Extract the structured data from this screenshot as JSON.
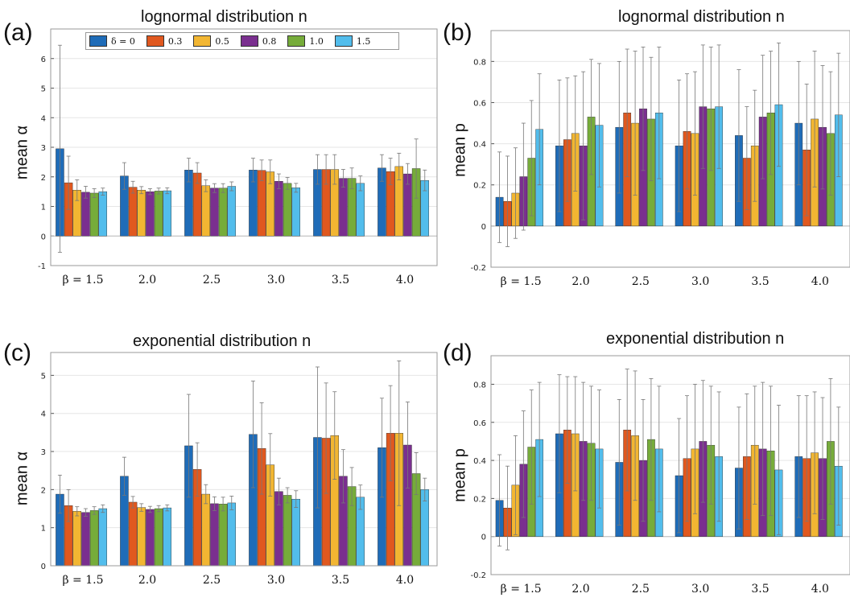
{
  "colors": [
    "#1f6cb8",
    "#e0581f",
    "#f2b632",
    "#7a2f8f",
    "#76ac3a",
    "#52bdec"
  ],
  "legend": {
    "entries": [
      "δ = 0",
      "0.3",
      "0.5",
      "0.8",
      "1.0",
      "1.5"
    ]
  },
  "chart_data": [
    {
      "panel_label": "(a)",
      "type": "bar",
      "title": "lognormal distribution n",
      "ylabel": "mean α",
      "categories": [
        "β = 1.5",
        "2.0",
        "2.5",
        "3.0",
        "3.5",
        "4.0"
      ],
      "yticks": [
        "-1",
        "0",
        "1",
        "2",
        "3",
        "4",
        "5",
        "6"
      ],
      "ylim": [
        -1,
        7
      ],
      "series": [
        {
          "name": "δ = 0",
          "values": [
            2.95,
            2.03,
            2.23,
            2.23,
            2.25,
            2.3
          ],
          "err": [
            3.5,
            0.45,
            0.4,
            0.4,
            0.5,
            0.45
          ]
        },
        {
          "name": "0.3",
          "values": [
            1.8,
            1.65,
            2.13,
            2.22,
            2.25,
            2.18
          ],
          "err": [
            0.9,
            0.2,
            0.35,
            0.35,
            0.5,
            0.45
          ]
        },
        {
          "name": "0.5",
          "values": [
            1.55,
            1.55,
            1.7,
            2.17,
            2.25,
            2.35
          ],
          "err": [
            0.35,
            0.12,
            0.2,
            0.4,
            0.5,
            0.45
          ]
        },
        {
          "name": "0.8",
          "values": [
            1.48,
            1.5,
            1.62,
            1.85,
            1.95,
            2.1
          ],
          "err": [
            0.2,
            0.1,
            0.15,
            0.25,
            0.3,
            0.35
          ]
        },
        {
          "name": "1.0",
          "values": [
            1.45,
            1.52,
            1.62,
            1.78,
            1.95,
            2.28
          ],
          "err": [
            0.15,
            0.1,
            0.15,
            0.2,
            0.35,
            1.0
          ]
        },
        {
          "name": "1.5",
          "values": [
            1.5,
            1.53,
            1.68,
            1.63,
            1.78,
            1.88
          ],
          "err": [
            0.12,
            0.1,
            0.15,
            0.15,
            0.25,
            0.35
          ]
        }
      ]
    },
    {
      "panel_label": "(b)",
      "type": "bar",
      "title": "lognormal distribution n",
      "ylabel": "mean p",
      "categories": [
        "β = 1.5",
        "2.0",
        "2.5",
        "3.0",
        "3.5",
        "4.0"
      ],
      "yticks": [
        "-0.2",
        "0",
        "0.2",
        "0.4",
        "0.6",
        "0.8"
      ],
      "ylim": [
        -0.2,
        0.95
      ],
      "series": [
        {
          "name": "δ = 0",
          "values": [
            0.14,
            0.39,
            0.48,
            0.39,
            0.44,
            0.5
          ],
          "err": [
            0.22,
            0.32,
            0.32,
            0.32,
            0.32,
            0.3
          ]
        },
        {
          "name": "0.3",
          "values": [
            0.12,
            0.42,
            0.55,
            0.46,
            0.33,
            0.37
          ],
          "err": [
            0.22,
            0.3,
            0.31,
            0.28,
            0.25,
            0.32
          ]
        },
        {
          "name": "0.5",
          "values": [
            0.16,
            0.45,
            0.5,
            0.45,
            0.39,
            0.52
          ],
          "err": [
            0.22,
            0.28,
            0.35,
            0.3,
            0.27,
            0.33
          ]
        },
        {
          "name": "0.8",
          "values": [
            0.24,
            0.39,
            0.57,
            0.58,
            0.53,
            0.48
          ],
          "err": [
            0.26,
            0.36,
            0.3,
            0.3,
            0.3,
            0.3
          ]
        },
        {
          "name": "1.0",
          "values": [
            0.33,
            0.53,
            0.52,
            0.57,
            0.55,
            0.45
          ],
          "err": [
            0.28,
            0.28,
            0.3,
            0.3,
            0.3,
            0.3
          ]
        },
        {
          "name": "1.5",
          "values": [
            0.47,
            0.49,
            0.55,
            0.58,
            0.59,
            0.54
          ],
          "err": [
            0.27,
            0.3,
            0.32,
            0.3,
            0.3,
            0.3
          ]
        }
      ]
    },
    {
      "panel_label": "(c)",
      "type": "bar",
      "title": "exponential distribution n",
      "ylabel": "mean α",
      "categories": [
        "β = 1.5",
        "2.0",
        "2.5",
        "3.0",
        "3.5",
        "4.0"
      ],
      "yticks": [
        "0",
        "1",
        "2",
        "3",
        "4",
        "5"
      ],
      "ylim": [
        0,
        5.6
      ],
      "series": [
        {
          "name": "δ = 0",
          "values": [
            1.88,
            2.35,
            3.15,
            3.45,
            3.37,
            3.1
          ],
          "err": [
            0.5,
            0.5,
            1.35,
            1.4,
            1.85,
            1.3
          ]
        },
        {
          "name": "0.3",
          "values": [
            1.58,
            1.67,
            2.53,
            3.08,
            3.35,
            3.48
          ],
          "err": [
            0.42,
            0.15,
            0.7,
            1.2,
            1.45,
            1.25
          ]
        },
        {
          "name": "0.5",
          "values": [
            1.43,
            1.53,
            1.88,
            2.65,
            3.42,
            3.48
          ],
          "err": [
            0.12,
            0.1,
            0.25,
            0.82,
            1.15,
            1.9
          ]
        },
        {
          "name": "0.8",
          "values": [
            1.4,
            1.48,
            1.63,
            1.95,
            2.35,
            3.17
          ],
          "err": [
            0.1,
            0.08,
            0.18,
            0.35,
            0.7,
            1.13
          ]
        },
        {
          "name": "1.0",
          "values": [
            1.45,
            1.5,
            1.62,
            1.85,
            2.08,
            2.42
          ],
          "err": [
            0.1,
            0.08,
            0.18,
            0.2,
            0.5,
            0.55
          ]
        },
        {
          "name": "1.5",
          "values": [
            1.5,
            1.52,
            1.65,
            1.75,
            1.8,
            2.0
          ],
          "err": [
            0.1,
            0.08,
            0.18,
            0.22,
            0.32,
            0.3
          ]
        }
      ]
    },
    {
      "panel_label": "(d)",
      "type": "bar",
      "title": "exponential distribution n",
      "ylabel": "mean p",
      "categories": [
        "β = 1.5",
        "2.0",
        "2.5",
        "3.0",
        "3.5",
        "4.0"
      ],
      "yticks": [
        "-0.2",
        "0",
        "0.2",
        "0.4",
        "0.6",
        "0.8"
      ],
      "ylim": [
        -0.2,
        0.95
      ],
      "series": [
        {
          "name": "δ = 0",
          "values": [
            0.19,
            0.54,
            0.39,
            0.32,
            0.36,
            0.42
          ],
          "err": [
            0.24,
            0.31,
            0.33,
            0.3,
            0.32,
            0.32
          ]
        },
        {
          "name": "0.3",
          "values": [
            0.15,
            0.56,
            0.56,
            0.41,
            0.42,
            0.41
          ],
          "err": [
            0.22,
            0.28,
            0.32,
            0.33,
            0.33,
            0.33
          ]
        },
        {
          "name": "0.5",
          "values": [
            0.27,
            0.54,
            0.53,
            0.46,
            0.48,
            0.44
          ],
          "err": [
            0.26,
            0.3,
            0.34,
            0.34,
            0.31,
            0.32
          ]
        },
        {
          "name": "0.8",
          "values": [
            0.38,
            0.5,
            0.4,
            0.5,
            0.46,
            0.41
          ],
          "err": [
            0.28,
            0.31,
            0.32,
            0.32,
            0.35,
            0.32
          ]
        },
        {
          "name": "1.0",
          "values": [
            0.47,
            0.49,
            0.51,
            0.48,
            0.45,
            0.5
          ],
          "err": [
            0.3,
            0.3,
            0.32,
            0.31,
            0.34,
            0.33
          ]
        },
        {
          "name": "1.5",
          "values": [
            0.51,
            0.46,
            0.46,
            0.42,
            0.35,
            0.37
          ],
          "err": [
            0.3,
            0.31,
            0.33,
            0.34,
            0.34,
            0.31
          ]
        }
      ]
    }
  ]
}
